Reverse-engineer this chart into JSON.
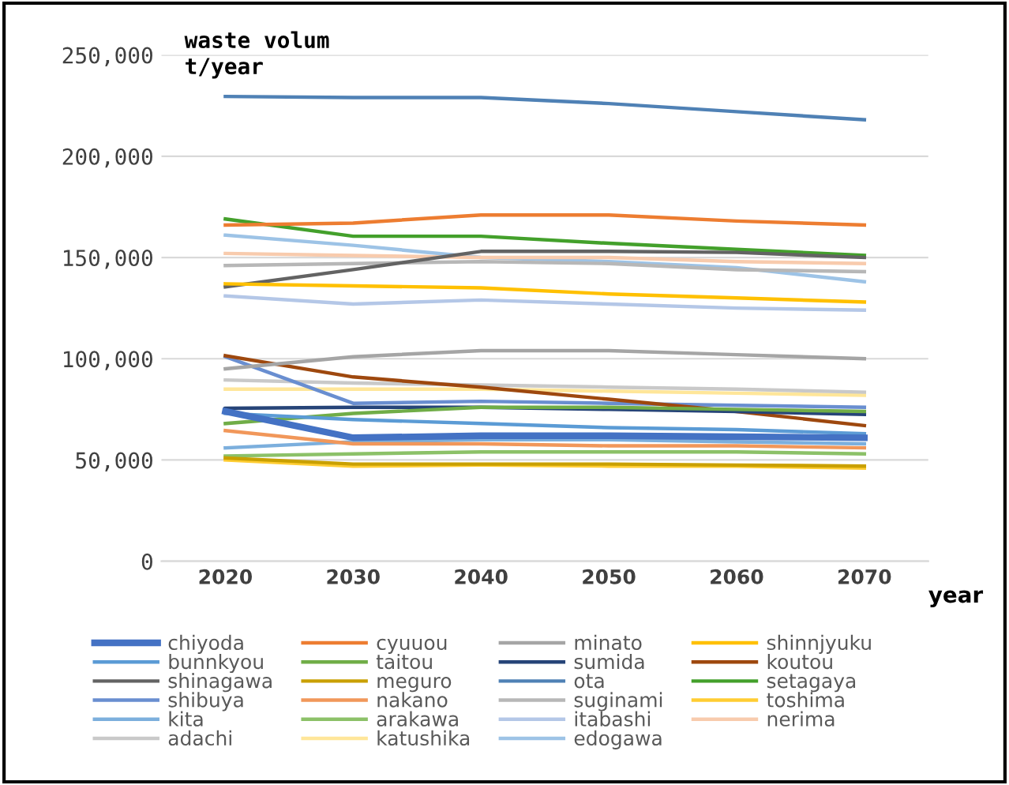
{
  "chart_data": {
    "type": "line",
    "ylabel": "waste volum\nt/year",
    "xlabel": "year",
    "categories": [
      "2020",
      "2030",
      "2040",
      "2050",
      "2060",
      "2070"
    ],
    "ylim": [
      0,
      250000
    ],
    "yticks": [
      {
        "value": 0,
        "label": "0"
      },
      {
        "value": 50000,
        "label": "50,000"
      },
      {
        "value": 100000,
        "label": "100,000"
      },
      {
        "value": 150000,
        "label": "150,000"
      },
      {
        "value": 200000,
        "label": "200,000"
      },
      {
        "value": 250000,
        "label": "250,000"
      }
    ],
    "grid": "y",
    "legend": "bottom",
    "marker": "none",
    "line_style": "solid",
    "series": [
      {
        "name": "chiyoda",
        "color": "#4472c4",
        "values": [
          74000,
          61000,
          62000,
          62000,
          61500,
          61000
        ]
      },
      {
        "name": "cyuuou",
        "color": "#ed7d31",
        "values": [
          166000,
          167000,
          171000,
          171000,
          168000,
          166000
        ]
      },
      {
        "name": "minato",
        "color": "#a5a5a5",
        "values": [
          95000,
          101000,
          104000,
          104000,
          102000,
          100000
        ]
      },
      {
        "name": "shinnjyuku",
        "color": "#ffc000",
        "values": [
          137000,
          136000,
          135000,
          132000,
          130000,
          128000
        ]
      },
      {
        "name": "bunnkyou",
        "color": "#5b9bd5",
        "values": [
          73000,
          70000,
          68000,
          66000,
          65000,
          63000
        ]
      },
      {
        "name": "taitou",
        "color": "#70ad47",
        "values": [
          68000,
          73000,
          76000,
          76000,
          75000,
          74000
        ]
      },
      {
        "name": "sumida",
        "color": "#264478",
        "values": [
          75500,
          76000,
          76000,
          75000,
          74000,
          72500
        ]
      },
      {
        "name": "koutou",
        "color": "#9e480e",
        "values": [
          101500,
          91000,
          86000,
          80000,
          74000,
          67000
        ]
      },
      {
        "name": "shinagawa",
        "color": "#636363",
        "values": [
          135500,
          144000,
          153000,
          153000,
          152500,
          150000
        ]
      },
      {
        "name": "meguro",
        "color": "#c9a000",
        "values": [
          51000,
          48000,
          48000,
          48000,
          47500,
          47000
        ]
      },
      {
        "name": "ota",
        "color": "#4f81b5",
        "values": [
          229500,
          229000,
          229000,
          226000,
          222000,
          218000
        ]
      },
      {
        "name": "setagaya",
        "color": "#43a02b",
        "values": [
          169000,
          160500,
          160500,
          157000,
          154000,
          151000
        ]
      },
      {
        "name": "shibuya",
        "color": "#698ed0",
        "values": [
          101000,
          78000,
          79000,
          78000,
          77000,
          76000
        ]
      },
      {
        "name": "nakano",
        "color": "#f1975a",
        "values": [
          64500,
          58000,
          58000,
          57000,
          57000,
          56000
        ]
      },
      {
        "name": "suginami",
        "color": "#b7b7b7",
        "values": [
          146000,
          147000,
          148000,
          147000,
          144000,
          143000
        ]
      },
      {
        "name": "toshima",
        "color": "#ffcd33",
        "values": [
          50000,
          47000,
          47500,
          47000,
          47000,
          46000
        ]
      },
      {
        "name": "kita",
        "color": "#7cafdd",
        "values": [
          56000,
          59000,
          60000,
          60000,
          59000,
          58000
        ]
      },
      {
        "name": "arakawa",
        "color": "#8cc168",
        "values": [
          52000,
          53000,
          54000,
          54000,
          54000,
          53000
        ]
      },
      {
        "name": "itabashi",
        "color": "#b4c7e7",
        "values": [
          131000,
          127000,
          129000,
          127000,
          125000,
          124000
        ]
      },
      {
        "name": "nerima",
        "color": "#f8cbad",
        "values": [
          152000,
          151000,
          150000,
          150000,
          148000,
          147000
        ]
      },
      {
        "name": "adachi",
        "color": "#c9c9c9",
        "values": [
          89500,
          88000,
          87000,
          86000,
          85000,
          83500
        ]
      },
      {
        "name": "katushika",
        "color": "#ffe699",
        "values": [
          85000,
          85000,
          85000,
          84000,
          83000,
          82000
        ]
      },
      {
        "name": "edogawa",
        "color": "#9dc3e6",
        "values": [
          161000,
          156000,
          150000,
          148000,
          145000,
          138000
        ]
      }
    ]
  }
}
